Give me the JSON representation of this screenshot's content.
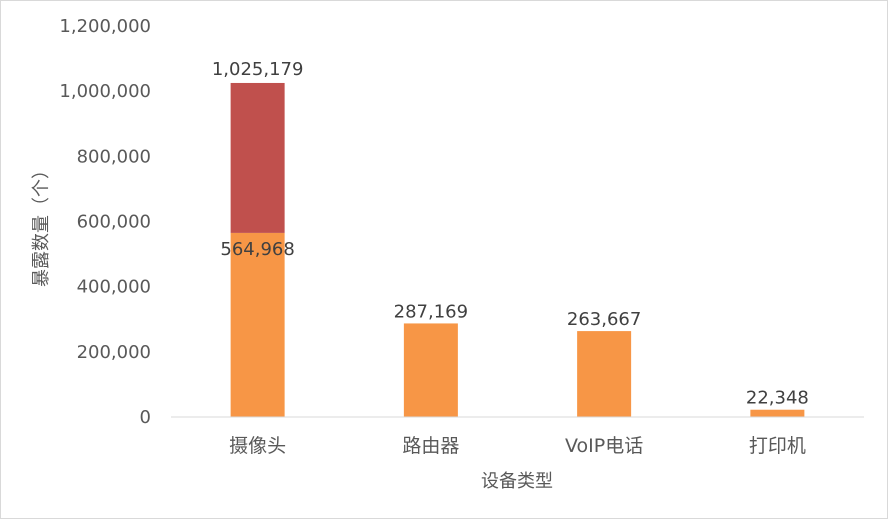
{
  "chart_data": {
    "type": "bar",
    "stacked": true,
    "title": "",
    "xlabel": "设备类型",
    "ylabel": "暴露数量（个）",
    "ylim": [
      0,
      1200000
    ],
    "yticks": [
      0,
      200000,
      400000,
      600000,
      800000,
      1000000,
      1200000
    ],
    "ytick_labels": [
      "0",
      "200,000",
      "400,000",
      "600,000",
      "800,000",
      "1,000,000",
      "1,200,000"
    ],
    "grid": false,
    "legend": "none",
    "categories": [
      "摄像头",
      "路由器",
      "VoIP电话",
      "打印机"
    ],
    "series": [
      {
        "color": "#F79646",
        "values": [
          564968,
          287169,
          263667,
          22348
        ],
        "labels": [
          "564,968",
          "287,169",
          "263,667",
          "22,348"
        ]
      },
      {
        "color": "#C0504D",
        "values": [
          460211,
          0,
          0,
          0
        ],
        "labels": [
          "",
          "",
          "",
          ""
        ]
      }
    ],
    "total_labels": [
      "1,025,179",
      "",
      "",
      ""
    ]
  }
}
